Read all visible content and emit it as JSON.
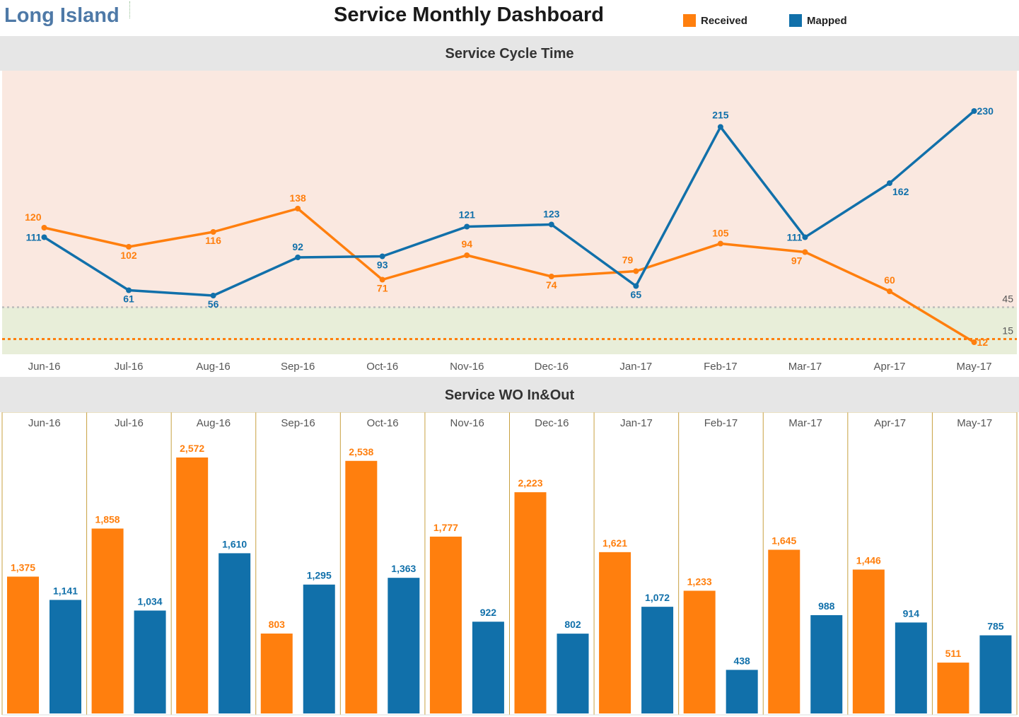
{
  "header": {
    "brand": "Long Island",
    "title": "Service Monthly Dashboard",
    "legend": [
      {
        "name": "Received",
        "color": "#ff7f0e"
      },
      {
        "name": "Mapped",
        "color": "#1170aa"
      }
    ]
  },
  "colors": {
    "received": "#ff7f0e",
    "mapped": "#1170aa",
    "band_high": "#fae8e0",
    "band_mid": "#e8eed9",
    "band_low": "#e8eed9",
    "section_bg": "#e6e6e6",
    "divider": "#c8a040"
  },
  "chart_data": [
    {
      "type": "line",
      "title": "Service Cycle Time",
      "categories": [
        "Jun-16",
        "Jul-16",
        "Aug-16",
        "Sep-16",
        "Oct-16",
        "Nov-16",
        "Dec-16",
        "Jan-17",
        "Feb-17",
        "Mar-17",
        "Apr-17",
        "May-17"
      ],
      "series": [
        {
          "name": "Received",
          "values": [
            120,
            102,
            116,
            138,
            71,
            94,
            74,
            79,
            105,
            97,
            60,
            12
          ]
        },
        {
          "name": "Mapped",
          "values": [
            111,
            61,
            56,
            92,
            93,
            121,
            123,
            65,
            215,
            111,
            162,
            230
          ]
        }
      ],
      "reference_lines": [
        {
          "value": 45,
          "label": "45"
        },
        {
          "value": 15,
          "label": "15"
        }
      ],
      "ylim": [
        -10,
        250
      ],
      "grid": false,
      "legend": "top-right"
    },
    {
      "type": "bar",
      "title": "Service WO In&Out",
      "categories": [
        "Jun-16",
        "Jul-16",
        "Aug-16",
        "Sep-16",
        "Oct-16",
        "Nov-16",
        "Dec-16",
        "Jan-17",
        "Feb-17",
        "Mar-17",
        "Apr-17",
        "May-17"
      ],
      "series": [
        {
          "name": "Received",
          "values": [
            1375,
            1858,
            2572,
            803,
            2538,
            1777,
            2223,
            1621,
            1233,
            1645,
            1446,
            511
          ]
        },
        {
          "name": "Mapped",
          "values": [
            1141,
            1034,
            1610,
            1295,
            1363,
            922,
            802,
            1072,
            438,
            988,
            914,
            785
          ]
        }
      ],
      "value_labels": {
        "received": [
          "1,375",
          "1,858",
          "2,572",
          "803",
          "2,538",
          "1,777",
          "2,223",
          "1,621",
          "1,233",
          "1,645",
          "1,446",
          "511"
        ],
        "mapped": [
          "1,141",
          "1,034",
          "1,610",
          "1,295",
          "1,363",
          "922",
          "802",
          "1,072",
          "438",
          "988",
          "914",
          "785"
        ]
      },
      "ylim": [
        0,
        2800
      ],
      "grid": false,
      "legend": "top-right"
    }
  ]
}
